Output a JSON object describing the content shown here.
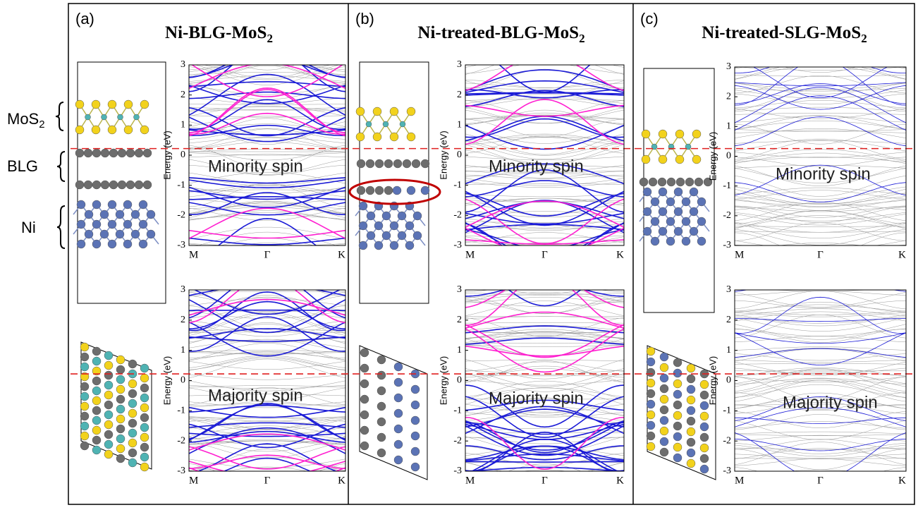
{
  "panels": [
    {
      "label": "(a)",
      "title": "Ni-BLG-MoS",
      "title_sub": "2",
      "spins": [
        "Minority spin",
        "Majority spin"
      ]
    },
    {
      "label": "(b)",
      "title": "Ni-treated-BLG-MoS",
      "title_sub": "2",
      "spins": [
        "Minority spin",
        "Majority spin"
      ]
    },
    {
      "label": "(c)",
      "title": "Ni-treated-SLG-MoS",
      "title_sub": "2",
      "spins": [
        "Minority spin",
        "Majority spin"
      ]
    }
  ],
  "axis": {
    "ylabel": "Energy (eV)",
    "ylim": [
      -3,
      3
    ],
    "yticks": [
      -3,
      -2,
      -1,
      0,
      1,
      2,
      3
    ],
    "kpoints": [
      "M",
      "Γ",
      "K"
    ],
    "reference_line": 0.22
  },
  "layer_labels": {
    "mos2": "MoS",
    "mos2_sub": "2",
    "blg": "BLG",
    "ni": "Ni"
  }
}
